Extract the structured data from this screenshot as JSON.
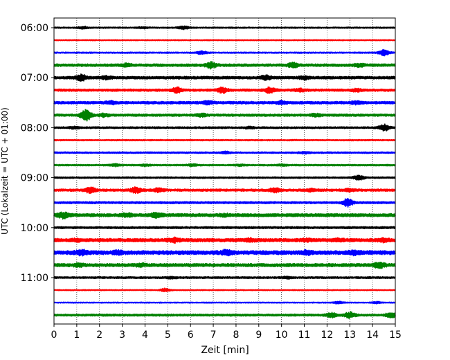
{
  "chart_data": {
    "type": "line",
    "subtype": "helicorder",
    "xlabel": "Zeit  [min]",
    "ylabel": "UTC (Lokalzeit = UTC + 01:00)",
    "xlim": [
      0,
      15
    ],
    "x_ticks": [
      "0",
      "1",
      "2",
      "3",
      "4",
      "5",
      "6",
      "7",
      "8",
      "9",
      "10",
      "11",
      "12",
      "13",
      "14",
      "15"
    ],
    "y_ticks": [
      "06:00",
      "07:00",
      "08:00",
      "09:00",
      "10:00",
      "11:00"
    ],
    "grid": "vertical dotted",
    "trace_colors": [
      "#000000",
      "#ff0000",
      "#0000ff",
      "#008000"
    ],
    "trace_interval_min": 15,
    "traces": [
      {
        "start": "06:00",
        "color": "#000000",
        "base_amp": 0.5,
        "events": [
          [
            1.3,
            1.2
          ],
          [
            3.9,
            1.0
          ],
          [
            5.7,
            1.5
          ]
        ]
      },
      {
        "start": "06:15",
        "color": "#ff0000",
        "base_amp": 0.4,
        "events": []
      },
      {
        "start": "06:30",
        "color": "#0000ff",
        "base_amp": 0.5,
        "events": [
          [
            6.5,
            1.6
          ],
          [
            14.5,
            2.6
          ]
        ]
      },
      {
        "start": "06:45",
        "color": "#008000",
        "base_amp": 1.0,
        "events": [
          [
            3.2,
            2.0
          ],
          [
            6.9,
            3.0
          ],
          [
            10.5,
            2.4
          ],
          [
            13.4,
            1.8
          ]
        ]
      },
      {
        "start": "07:00",
        "color": "#000000",
        "base_amp": 1.0,
        "events": [
          [
            1.2,
            3.0
          ],
          [
            2.3,
            1.8
          ],
          [
            9.3,
            2.5
          ],
          [
            11.0,
            2.0
          ]
        ]
      },
      {
        "start": "07:15",
        "color": "#ff0000",
        "base_amp": 0.9,
        "events": [
          [
            5.4,
            2.6
          ],
          [
            7.4,
            2.6
          ],
          [
            9.5,
            2.8
          ],
          [
            10.8,
            1.8
          ],
          [
            13.3,
            1.6
          ]
        ]
      },
      {
        "start": "07:30",
        "color": "#0000ff",
        "base_amp": 1.0,
        "events": [
          [
            2.5,
            2.0
          ],
          [
            6.8,
            2.0
          ],
          [
            10.0,
            1.8
          ],
          [
            13.3,
            2.0
          ]
        ]
      },
      {
        "start": "07:45",
        "color": "#008000",
        "base_amp": 0.9,
        "events": [
          [
            1.4,
            5.0
          ],
          [
            2.2,
            1.8
          ],
          [
            6.5,
            1.8
          ],
          [
            11.5,
            1.8
          ]
        ]
      },
      {
        "start": "08:00",
        "color": "#000000",
        "base_amp": 0.7,
        "events": [
          [
            0.9,
            1.3
          ],
          [
            8.6,
            1.2
          ],
          [
            14.5,
            3.0
          ]
        ]
      },
      {
        "start": "08:15",
        "color": "#ff0000",
        "base_amp": 0.5,
        "events": []
      },
      {
        "start": "08:30",
        "color": "#0000ff",
        "base_amp": 0.6,
        "events": [
          [
            7.5,
            1.3
          ],
          [
            11.0,
            1.2
          ]
        ]
      },
      {
        "start": "08:45",
        "color": "#008000",
        "base_amp": 0.6,
        "events": [
          [
            2.7,
            1.3
          ],
          [
            4.0,
            1.2
          ],
          [
            6.1,
            1.2
          ],
          [
            8.2,
            1.1
          ],
          [
            10.0,
            1.1
          ]
        ]
      },
      {
        "start": "09:00",
        "color": "#000000",
        "base_amp": 0.6,
        "events": [
          [
            13.4,
            2.2
          ]
        ]
      },
      {
        "start": "09:15",
        "color": "#ff0000",
        "base_amp": 0.9,
        "events": [
          [
            1.6,
            2.8
          ],
          [
            3.6,
            2.8
          ],
          [
            4.6,
            2.0
          ],
          [
            9.7,
            2.4
          ],
          [
            11.3,
            1.8
          ],
          [
            13.0,
            1.6
          ]
        ]
      },
      {
        "start": "09:30",
        "color": "#0000ff",
        "base_amp": 0.8,
        "events": [
          [
            12.9,
            3.4
          ]
        ]
      },
      {
        "start": "09:45",
        "color": "#008000",
        "base_amp": 1.2,
        "events": [
          [
            0.4,
            3.2
          ],
          [
            3.2,
            2.2
          ],
          [
            4.5,
            2.6
          ],
          [
            7.5,
            1.8
          ]
        ]
      },
      {
        "start": "10:00",
        "color": "#000000",
        "base_amp": 0.8,
        "events": []
      },
      {
        "start": "10:15",
        "color": "#ff0000",
        "base_amp": 1.3,
        "events": [
          [
            1.0,
            1.8
          ],
          [
            5.3,
            2.4
          ],
          [
            8.6,
            2.0
          ],
          [
            11.1,
            1.8
          ],
          [
            12.5,
            1.9
          ],
          [
            14.5,
            2.2
          ]
        ]
      },
      {
        "start": "10:30",
        "color": "#0000ff",
        "base_amp": 1.5,
        "events": [
          [
            1.2,
            3.0
          ],
          [
            2.8,
            2.4
          ],
          [
            7.6,
            3.0
          ],
          [
            11.1,
            2.4
          ],
          [
            13.2,
            2.6
          ]
        ]
      },
      {
        "start": "10:45",
        "color": "#008000",
        "base_amp": 1.2,
        "events": [
          [
            1.1,
            2.0
          ],
          [
            3.8,
            2.0
          ],
          [
            14.3,
            3.2
          ]
        ]
      },
      {
        "start": "11:00",
        "color": "#000000",
        "base_amp": 0.7,
        "events": [
          [
            5.2,
            1.2
          ],
          [
            10.2,
            1.3
          ]
        ]
      },
      {
        "start": "11:15",
        "color": "#ff0000",
        "base_amp": 0.4,
        "events": [
          [
            4.9,
            1.6
          ]
        ]
      },
      {
        "start": "11:30",
        "color": "#0000ff",
        "base_amp": 0.4,
        "events": [
          [
            12.5,
            1.2
          ],
          [
            14.2,
            1.0
          ]
        ]
      },
      {
        "start": "11:45",
        "color": "#008000",
        "base_amp": 0.8,
        "events": [
          [
            12.2,
            2.2
          ],
          [
            13.0,
            2.8
          ],
          [
            14.8,
            2.4
          ]
        ]
      }
    ]
  }
}
